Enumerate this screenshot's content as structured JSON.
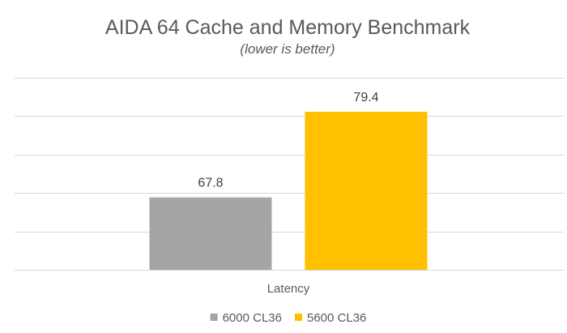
{
  "chart_data": {
    "type": "bar",
    "title": "AIDA 64 Cache and Memory Benchmark",
    "subtitle": "(lower is better)",
    "categories": [
      "Latency"
    ],
    "series": [
      {
        "name": "6000 CL36",
        "values": [
          67.8
        ],
        "color": "#a5a5a5",
        "value_label": "67.8"
      },
      {
        "name": "5600 CL36",
        "values": [
          79.4
        ],
        "color": "#ffc000",
        "value_label": "79.4"
      }
    ],
    "xlabel": "",
    "ylabel": "",
    "ylim": [
      58,
      84
    ],
    "gridlines": [
      58,
      63.2,
      68.4,
      73.6,
      78.8,
      84
    ],
    "grid": true,
    "y_tick_labels_visible": false,
    "legend_position": "bottom"
  }
}
